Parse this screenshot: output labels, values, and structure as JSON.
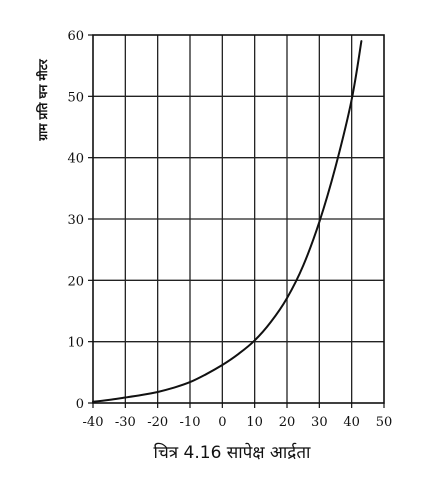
{
  "chart_data": {
    "type": "line",
    "title": "",
    "caption": "चित्र 4.16 सापेक्ष आर्द्रता",
    "xlabel": "",
    "ylabel": "ग्राम प्रति घन मीटर",
    "xlim": [
      -40,
      50
    ],
    "ylim": [
      0,
      60
    ],
    "xticks": [
      -40,
      -30,
      -20,
      -10,
      0,
      10,
      20,
      30,
      40,
      50
    ],
    "yticks": [
      0,
      10,
      20,
      30,
      40,
      50,
      60
    ],
    "grid": true,
    "line_color": "#111111",
    "grid_color": "#222222",
    "series": [
      {
        "x": [
          -40,
          -35,
          -30,
          -25,
          -20,
          -15,
          -10,
          -5,
          0,
          5,
          10,
          15,
          20,
          25,
          30,
          35,
          40,
          43
        ],
        "y": [
          0.2,
          0.5,
          0.9,
          1.3,
          1.8,
          2.5,
          3.4,
          4.7,
          6.2,
          8.0,
          10.2,
          13.2,
          17.1,
          22.4,
          29.5,
          38.5,
          49.5,
          59.0
        ]
      }
    ]
  }
}
